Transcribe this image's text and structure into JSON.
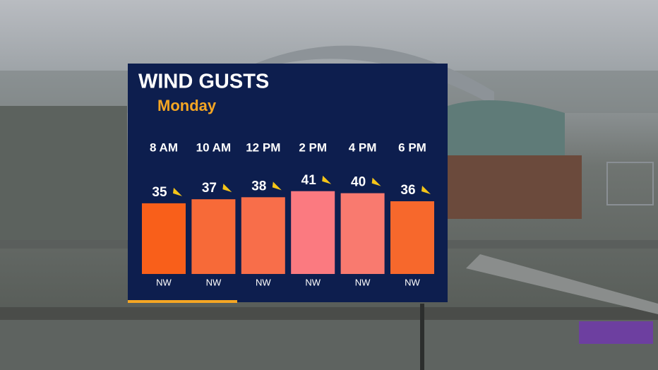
{
  "chart_data": {
    "type": "bar",
    "title": "WIND GUSTS",
    "subtitle": "Monday",
    "categories": [
      "8 AM",
      "10 AM",
      "12 PM",
      "2 PM",
      "4 PM",
      "6 PM"
    ],
    "values": [
      35,
      37,
      38,
      41,
      40,
      36
    ],
    "colors": [
      "#f95f1a",
      "#f76a38",
      "#f86e4a",
      "#fb7a80",
      "#f97a6f",
      "#f7682c"
    ],
    "directions": [
      "NW",
      "NW",
      "NW",
      "NW",
      "NW",
      "NW"
    ]
  }
}
